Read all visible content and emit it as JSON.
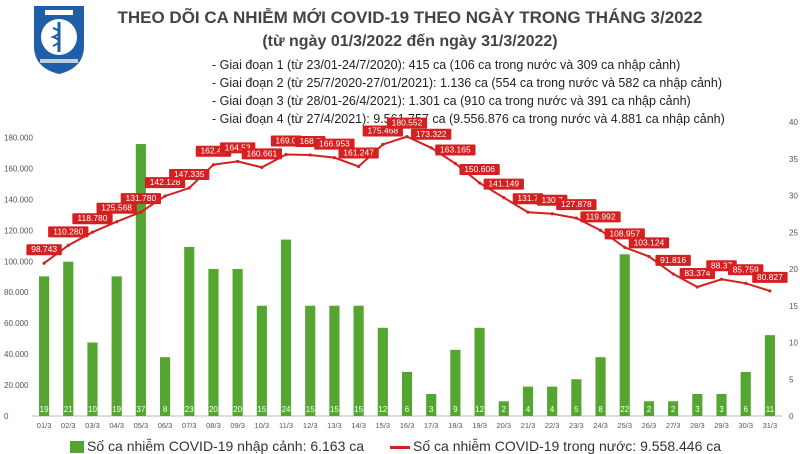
{
  "header": {
    "logo_text": "BỘ Y TẾ · MINISTRY OF HEALTH",
    "title": "THEO DÕI CA NHIỄM MỚI COVID-19 THEO NGÀY TRONG THÁNG 3/2022",
    "subtitle": "(từ ngày 01/3/2022 đến ngày 31/3/2022)"
  },
  "phases": [
    "- Giai đoạn 1 (từ 23/01-24/7/2020): 415 ca (106 ca trong nước và 309 ca nhập cảnh)",
    "- Giai đoạn 2 (từ 25/7/2020-27/01/2021): 1.136 ca (554 ca trong nước và 582 ca nhập cảnh)",
    "- Giai đoạn 3 (từ 28/01-26/4/2021): 1.301 ca (910 ca trong nước và 391 ca nhập cảnh)",
    "- Giai đoạn 4 (từ 27/4/2021): 9.561.757 ca (9.556.876 ca trong nước và 4.881 ca nhập cảnh)"
  ],
  "legend": {
    "bar": "Số ca nhiễm COVID-19 nhập cảnh: 6.163 ca",
    "line": "Số ca nhiễm COVID-19 trong nước: 9.558.446 ca"
  },
  "colors": {
    "bar": "#55a630",
    "line": "#d42020",
    "title": "#444444"
  },
  "chart_data": {
    "type": "bar+line",
    "categories": [
      "01/3",
      "02/3",
      "03/3",
      "04/3",
      "05/3",
      "06/3",
      "07/3",
      "08/3",
      "09/3",
      "10/3",
      "11/3",
      "12/3",
      "13/3",
      "14/3",
      "15/3",
      "16/3",
      "17/3",
      "18/3",
      "19/3",
      "20/3",
      "21/3",
      "22/3",
      "23/3",
      "24/3",
      "25/3",
      "26/3",
      "27/3",
      "28/3",
      "29/3",
      "30/3",
      "31/3"
    ],
    "series": [
      {
        "name": "Số ca nhiễm COVID-19 nhập cảnh: 6.163 ca",
        "type": "bar",
        "axis": "right",
        "values": [
          19,
          21,
          10,
          19,
          37,
          8,
          23,
          20,
          20,
          15,
          24,
          15,
          15,
          15,
          12,
          6,
          3,
          9,
          12,
          2,
          4,
          4,
          5,
          8,
          22,
          2,
          2,
          3,
          3,
          6,
          11
        ],
        "labels": [
          "19",
          "21",
          "10",
          "19",
          "37",
          "8",
          "23",
          "20",
          "20",
          "15",
          "24",
          "15",
          "15",
          "15",
          "12",
          "6",
          "3",
          "9",
          "12",
          "2",
          "4",
          "4",
          "5",
          "8",
          "22",
          "2",
          "2",
          "3",
          "3",
          "6",
          "11"
        ]
      },
      {
        "name": "Số ca nhiễm COVID-19 trong nước: 9.558.446 ca",
        "type": "line",
        "axis": "left",
        "values": [
          98743,
          110280,
          118780,
          125568,
          131780,
          142128,
          147335,
          162410,
          164530,
          160661,
          169000,
          168700,
          166953,
          161247,
          175468,
          180552,
          173322,
          163165,
          150606,
          141149,
          131700,
          130700,
          127878,
          119992,
          108957,
          103124,
          91816,
          83374,
          88370,
          85759,
          80827
        ],
        "labels": [
          "98.743",
          "110.280",
          "118.780",
          "125.568",
          "131.780",
          "142.128",
          "147.335",
          "162.41",
          "164.53",
          "160.661",
          "169.0",
          "168.7",
          "166.953",
          "161.247",
          "175.468",
          "180.552",
          "173.322",
          "163.165",
          "150.606",
          "141.149",
          "131.7",
          "130.7",
          "127.878",
          "119.992",
          "108.957",
          "103.124",
          "91.816",
          "83.374",
          "88.37",
          "85.759",
          "80.827"
        ]
      }
    ],
    "y_left": {
      "ticks": [
        "0",
        "20.000",
        "40.000",
        "60.000",
        "80.000",
        "100.000",
        "120.000",
        "140.000",
        "160.000",
        "180.000"
      ],
      "ylim": [
        0,
        190000
      ]
    },
    "y_right": {
      "ticks": [
        "0",
        "5",
        "10",
        "15",
        "20",
        "25",
        "30",
        "35",
        "40"
      ],
      "ylim": [
        0,
        40
      ]
    },
    "grid": false,
    "legend_position": "bottom"
  }
}
